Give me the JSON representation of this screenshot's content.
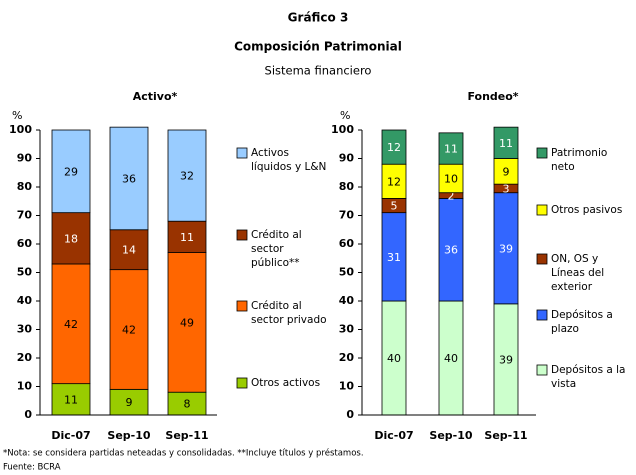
{
  "header": {
    "title": "Gráfico 3",
    "subtitle": "Composición Patrimonial",
    "caption": "Sistema financiero"
  },
  "notes": [
    "*Nota: se considera partidas neteadas y consolidadas. **Incluye títulos y préstamos.",
    "Fuente: BCRA"
  ],
  "chart_data": [
    {
      "type": "stacked_bar",
      "title": "Activo*",
      "ylabel": "%",
      "categories": [
        "Dic-07",
        "Sep-10",
        "Sep-11"
      ],
      "ylim": [
        0,
        100
      ],
      "yticks": [
        0,
        10,
        20,
        30,
        40,
        50,
        60,
        70,
        80,
        90,
        100
      ],
      "grid": false,
      "series": [
        {
          "name": "Otros activos",
          "color": "#99cc00",
          "label_color": "#000000",
          "values": [
            11,
            9,
            8
          ]
        },
        {
          "name": "Crédito al sector privado",
          "color": "#ff6600",
          "label_color": "#000000",
          "values": [
            42,
            42,
            49
          ]
        },
        {
          "name": "Crédito al sector público**",
          "color": "#993300",
          "label_color": "#ffffff",
          "values": [
            18,
            14,
            11
          ]
        },
        {
          "name": "Activos líquidos y L&N",
          "color": "#99ccff",
          "label_color": "#000000",
          "values": [
            29,
            36,
            32
          ]
        }
      ]
    },
    {
      "type": "stacked_bar",
      "title": "Fondeo*",
      "ylabel": "%",
      "categories": [
        "Dic-07",
        "Sep-10",
        "Sep-11"
      ],
      "ylim": [
        0,
        100
      ],
      "yticks": [
        0,
        10,
        20,
        30,
        40,
        50,
        60,
        70,
        80,
        90,
        100
      ],
      "grid": false,
      "series": [
        {
          "name": "Depósitos a la vista",
          "color": "#ccffcc",
          "label_color": "#000000",
          "values": [
            40,
            40,
            39
          ]
        },
        {
          "name": "Depósitos a plazo",
          "color": "#3366ff",
          "label_color": "#ffffff",
          "values": [
            31,
            36,
            39
          ]
        },
        {
          "name": "ON, OS y Líneas del exterior",
          "color": "#993300",
          "label_color": "#ffffff",
          "values": [
            5,
            2,
            3
          ]
        },
        {
          "name": "Otros pasivos",
          "color": "#ffff00",
          "label_color": "#000000",
          "values": [
            12,
            10,
            9
          ]
        },
        {
          "name": "Patrimonio neto",
          "color": "#339966",
          "label_color": "#ffffff",
          "values": [
            12,
            11,
            11
          ]
        }
      ]
    }
  ]
}
